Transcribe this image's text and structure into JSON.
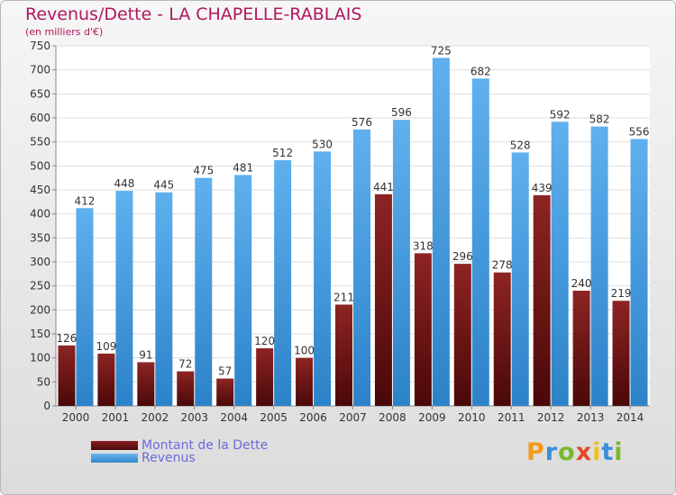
{
  "title": "Revenus/Dette - LA CHAPELLE-RABLAIS",
  "subtitle": "(en milliers d'€)",
  "chart_data": {
    "type": "bar",
    "categories": [
      "2000",
      "2001",
      "2002",
      "2003",
      "2004",
      "2005",
      "2006",
      "2007",
      "2008",
      "2009",
      "2010",
      "2011",
      "2012",
      "2013",
      "2014"
    ],
    "series": [
      {
        "name": "Montant de la Dette",
        "values": [
          126,
          109,
          91,
          72,
          57,
          120,
          100,
          211,
          441,
          318,
          296,
          278,
          439,
          240,
          219
        ],
        "color": "#7a1414"
      },
      {
        "name": "Revenus",
        "values": [
          412,
          448,
          445,
          475,
          481,
          512,
          530,
          576,
          596,
          725,
          682,
          528,
          592,
          582,
          556
        ],
        "color": "#4a9fe0"
      }
    ],
    "ylim": [
      0,
      750
    ],
    "yticks": [
      0,
      50,
      100,
      150,
      200,
      250,
      300,
      350,
      400,
      450,
      500,
      550,
      600,
      650,
      700,
      750
    ],
    "grid": true,
    "legend_position": "bottom-left"
  },
  "legend": {
    "debt_label": "Montant de la Dette",
    "revenue_label": "Revenus"
  },
  "logo": {
    "letters": [
      "P",
      "r",
      "o",
      "x",
      "i",
      "t",
      "i"
    ],
    "colors": [
      "#f29a1a",
      "#3a8fd6",
      "#7ab82a",
      "#e04a2a",
      "#f0c020",
      "#3a8fd6",
      "#7ab82a"
    ]
  }
}
